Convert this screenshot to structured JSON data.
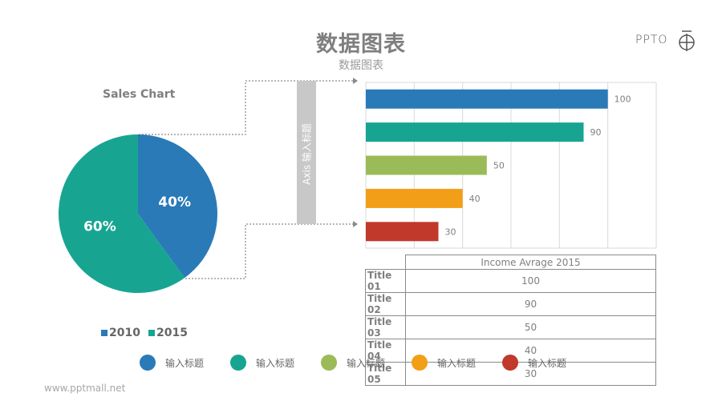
{
  "header": {
    "title": "数据图表",
    "subtitle": "数据图表"
  },
  "logo": {
    "text": "PPTO"
  },
  "colors": {
    "blue": "#2a7ab8",
    "teal": "#17a592",
    "green": "#9bbb59",
    "orange": "#f29f17",
    "red": "#c0392b",
    "gray_bar": "#c8c8c8"
  },
  "axis_label": "Axis 输入标题",
  "chart_data": [
    {
      "type": "pie",
      "title": "Sales Chart",
      "categories": [
        "2010",
        "2015"
      ],
      "values": [
        40,
        60
      ],
      "data_labels": [
        "40%",
        "60%"
      ],
      "legend": "bottom"
    },
    {
      "type": "bar",
      "orientation": "horizontal",
      "categories": [
        "Title 01",
        "Title 02",
        "Title 03",
        "Title 04",
        "Title 05"
      ],
      "values": [
        100,
        90,
        50,
        40,
        30
      ],
      "xlim": [
        0,
        120
      ],
      "grid": true
    },
    {
      "type": "table",
      "header": "Income Avrage 2015",
      "rows": [
        {
          "label": "Title 01",
          "value": "100"
        },
        {
          "label": "Title 02",
          "value": "90"
        },
        {
          "label": "Title 03",
          "value": "50"
        },
        {
          "label": "Title 04",
          "value": "40"
        },
        {
          "label": "Title 05",
          "value": "30"
        }
      ]
    }
  ],
  "legend_items": [
    "输入标题",
    "输入标题",
    "输入标题",
    "输入标题",
    "输入标题"
  ],
  "footer": "www.pptmall.net"
}
